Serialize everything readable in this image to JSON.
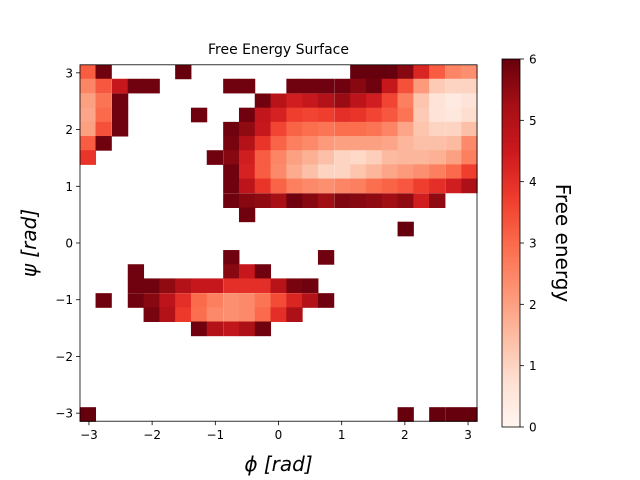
{
  "chart_data": {
    "type": "heatmap",
    "title": "Free Energy Surface",
    "xlabel": "ϕ  [rad]",
    "ylabel": "ψ  [rad]",
    "colorbar_label": "Free energy",
    "xlim": [
      -3.14159,
      3.14159
    ],
    "ylim": [
      -3.14159,
      3.14159
    ],
    "xticks": [
      -3,
      -2,
      -1,
      0,
      1,
      2,
      3
    ],
    "yticks": [
      -3,
      -2,
      -1,
      0,
      1,
      2,
      3
    ],
    "xtick_labels": [
      "−3",
      "−2",
      "−1",
      "0",
      "1",
      "2",
      "3"
    ],
    "ytick_labels": [
      "−3",
      "−2",
      "−1",
      "0",
      "1",
      "2",
      "3"
    ],
    "colorbar_range": [
      0,
      6
    ],
    "colorbar_ticks": [
      0,
      1,
      2,
      3,
      4,
      5,
      6
    ],
    "colorbar_tick_labels": [
      "0",
      "1",
      "2",
      "3",
      "4",
      "5",
      "6"
    ],
    "colormap": "Reds",
    "colormap_stops": [
      "#fff5f0",
      "#fee0d2",
      "#fcbba1",
      "#fc9272",
      "#fb6a4a",
      "#ef3b2c",
      "#cb181d",
      "#a50f15",
      "#67000d"
    ],
    "grid": false,
    "bins": 25,
    "cells_note": "cells: [phi_bin_center_rad, psi_bin_center_rad, free_energy]",
    "cells": [
      [
        -3.02,
        3.02,
        3.2
      ],
      [
        -2.77,
        3.02,
        5.9
      ],
      [
        -1.51,
        3.02,
        6.0
      ],
      [
        -3.02,
        2.77,
        2.5
      ],
      [
        -2.77,
        2.77,
        3.3
      ],
      [
        -2.51,
        2.77,
        4.6
      ],
      [
        -2.26,
        2.77,
        5.9
      ],
      [
        -2.01,
        2.77,
        5.9
      ],
      [
        -3.02,
        2.51,
        2.0
      ],
      [
        -2.77,
        2.51,
        2.8
      ],
      [
        -2.51,
        2.51,
        5.9
      ],
      [
        -3.02,
        2.26,
        1.9
      ],
      [
        -2.77,
        2.26,
        3.0
      ],
      [
        -2.51,
        2.26,
        5.9
      ],
      [
        -1.26,
        2.26,
        5.9
      ],
      [
        -3.02,
        2.01,
        2.0
      ],
      [
        -2.77,
        2.01,
        3.4
      ],
      [
        -2.51,
        2.01,
        5.9
      ],
      [
        -3.02,
        1.76,
        3.2
      ],
      [
        -2.77,
        1.76,
        5.9
      ],
      [
        -3.02,
        1.51,
        3.9
      ],
      [
        -0.75,
        2.77,
        5.9
      ],
      [
        -0.5,
        2.77,
        5.9
      ],
      [
        0.25,
        2.77,
        5.9
      ],
      [
        0.5,
        2.77,
        5.9
      ],
      [
        0.75,
        2.77,
        5.9
      ],
      [
        -0.25,
        2.51,
        5.9
      ],
      [
        0.0,
        2.51,
        4.9
      ],
      [
        0.25,
        2.51,
        4.4
      ],
      [
        0.5,
        2.51,
        4.6
      ],
      [
        0.75,
        2.51,
        5.0
      ],
      [
        -0.5,
        2.26,
        5.9
      ],
      [
        -0.25,
        2.26,
        4.7
      ],
      [
        0.0,
        2.26,
        4.3
      ],
      [
        0.25,
        2.26,
        3.7
      ],
      [
        0.5,
        2.26,
        3.6
      ],
      [
        0.75,
        2.26,
        3.7
      ],
      [
        -0.75,
        2.01,
        5.9
      ],
      [
        -0.5,
        2.01,
        5.5
      ],
      [
        -0.25,
        2.01,
        4.6
      ],
      [
        0.0,
        2.01,
        3.6
      ],
      [
        0.25,
        2.01,
        3.1
      ],
      [
        0.5,
        2.01,
        2.9
      ],
      [
        0.75,
        2.01,
        2.8
      ],
      [
        -0.75,
        1.76,
        5.8
      ],
      [
        -0.5,
        1.76,
        5.0
      ],
      [
        -0.25,
        1.76,
        3.9
      ],
      [
        0.0,
        1.76,
        3.1
      ],
      [
        0.25,
        1.76,
        2.6
      ],
      [
        0.5,
        1.76,
        2.4
      ],
      [
        0.75,
        1.76,
        2.1
      ],
      [
        -1.01,
        1.51,
        5.9
      ],
      [
        -0.75,
        1.51,
        5.6
      ],
      [
        -0.5,
        1.51,
        4.4
      ],
      [
        -0.25,
        1.51,
        3.2
      ],
      [
        0.0,
        1.51,
        2.5
      ],
      [
        0.25,
        1.51,
        2.0
      ],
      [
        0.5,
        1.51,
        1.7
      ],
      [
        0.75,
        1.51,
        1.4
      ],
      [
        -0.75,
        1.26,
        5.9
      ],
      [
        -0.5,
        1.26,
        4.3
      ],
      [
        -0.25,
        1.26,
        3.2
      ],
      [
        0.0,
        1.26,
        2.4
      ],
      [
        0.25,
        1.26,
        1.8
      ],
      [
        0.5,
        1.26,
        1.4
      ],
      [
        0.75,
        1.26,
        1.0
      ],
      [
        -0.75,
        1.01,
        5.9
      ],
      [
        -0.5,
        1.01,
        4.8
      ],
      [
        -0.25,
        1.01,
        3.9
      ],
      [
        0.0,
        1.01,
        3.1
      ],
      [
        0.25,
        1.01,
        2.6
      ],
      [
        0.5,
        1.01,
        2.4
      ],
      [
        0.75,
        1.01,
        2.3
      ],
      [
        -0.75,
        0.75,
        5.9
      ],
      [
        -0.5,
        0.75,
        5.6
      ],
      [
        -0.25,
        0.75,
        5.5
      ],
      [
        0.0,
        0.75,
        5.2
      ],
      [
        0.25,
        0.75,
        5.9
      ],
      [
        0.5,
        0.75,
        5.6
      ],
      [
        0.75,
        0.75,
        5.3
      ],
      [
        -0.5,
        0.5,
        5.9
      ],
      [
        1.26,
        3.02,
        6.0
      ],
      [
        1.51,
        3.02,
        6.0
      ],
      [
        1.76,
        3.02,
        6.0
      ],
      [
        2.01,
        3.02,
        5.6
      ],
      [
        2.26,
        3.02,
        4.2
      ],
      [
        2.51,
        3.02,
        3.2
      ],
      [
        2.77,
        3.02,
        2.5
      ],
      [
        3.02,
        3.02,
        2.3
      ],
      [
        1.01,
        2.77,
        5.9
      ],
      [
        1.26,
        2.77,
        5.6
      ],
      [
        1.51,
        2.77,
        5.9
      ],
      [
        1.76,
        2.77,
        4.6
      ],
      [
        2.01,
        2.77,
        3.4
      ],
      [
        2.26,
        2.77,
        2.1
      ],
      [
        2.51,
        2.77,
        1.2
      ],
      [
        2.77,
        2.77,
        1.0
      ],
      [
        3.02,
        2.77,
        1.0
      ],
      [
        1.01,
        2.51,
        5.4
      ],
      [
        1.26,
        2.51,
        4.8
      ],
      [
        1.51,
        2.51,
        4.4
      ],
      [
        1.76,
        2.51,
        3.6
      ],
      [
        2.01,
        2.51,
        2.6
      ],
      [
        2.26,
        2.51,
        1.3
      ],
      [
        2.51,
        2.51,
        0.6
      ],
      [
        2.77,
        2.51,
        0.4
      ],
      [
        3.02,
        2.51,
        0.6
      ],
      [
        1.01,
        2.26,
        4.0
      ],
      [
        1.26,
        2.26,
        3.9
      ],
      [
        1.51,
        2.26,
        3.6
      ],
      [
        1.76,
        2.26,
        3.3
      ],
      [
        2.01,
        2.26,
        2.8
      ],
      [
        2.26,
        2.26,
        1.2
      ],
      [
        2.51,
        2.26,
        0.6
      ],
      [
        2.77,
        2.26,
        0.5
      ],
      [
        3.02,
        2.26,
        0.8
      ],
      [
        1.01,
        2.01,
        2.9
      ],
      [
        1.26,
        2.01,
        2.9
      ],
      [
        1.51,
        2.01,
        2.8
      ],
      [
        1.76,
        2.01,
        2.5
      ],
      [
        2.01,
        2.01,
        1.9
      ],
      [
        2.26,
        2.01,
        1.3
      ],
      [
        2.51,
        2.01,
        1.0
      ],
      [
        2.77,
        2.01,
        1.0
      ],
      [
        3.02,
        2.01,
        1.4
      ],
      [
        1.01,
        1.76,
        2.0
      ],
      [
        1.26,
        1.76,
        2.0
      ],
      [
        1.51,
        1.76,
        2.0
      ],
      [
        1.76,
        1.76,
        1.9
      ],
      [
        2.01,
        1.76,
        1.6
      ],
      [
        2.26,
        1.76,
        1.4
      ],
      [
        2.51,
        1.76,
        1.4
      ],
      [
        2.77,
        1.76,
        1.5
      ],
      [
        3.02,
        1.76,
        2.4
      ],
      [
        1.01,
        1.51,
        1.0
      ],
      [
        1.26,
        1.51,
        0.9
      ],
      [
        1.51,
        1.51,
        1.1
      ],
      [
        1.76,
        1.51,
        1.5
      ],
      [
        2.01,
        1.51,
        1.6
      ],
      [
        2.26,
        1.51,
        1.6
      ],
      [
        2.51,
        1.51,
        1.7
      ],
      [
        2.77,
        1.51,
        2.0
      ],
      [
        3.02,
        1.51,
        2.6
      ],
      [
        1.01,
        1.26,
        1.0
      ],
      [
        1.26,
        1.26,
        1.3
      ],
      [
        1.51,
        1.26,
        1.6
      ],
      [
        1.76,
        1.26,
        1.9
      ],
      [
        2.01,
        1.26,
        2.1
      ],
      [
        2.26,
        1.26,
        2.3
      ],
      [
        2.51,
        1.26,
        2.6
      ],
      [
        2.77,
        1.26,
        3.0
      ],
      [
        3.02,
        1.26,
        3.7
      ],
      [
        1.01,
        1.01,
        2.5
      ],
      [
        1.26,
        1.01,
        2.6
      ],
      [
        1.51,
        1.01,
        2.9
      ],
      [
        1.76,
        1.01,
        3.1
      ],
      [
        2.01,
        1.01,
        3.3
      ],
      [
        2.26,
        1.01,
        3.7
      ],
      [
        2.51,
        1.01,
        4.0
      ],
      [
        2.77,
        1.01,
        4.4
      ],
      [
        3.02,
        1.01,
        5.1
      ],
      [
        1.01,
        0.75,
        5.7
      ],
      [
        1.26,
        0.75,
        5.6
      ],
      [
        1.51,
        0.75,
        5.5
      ],
      [
        1.76,
        0.75,
        5.3
      ],
      [
        2.01,
        0.75,
        5.5
      ],
      [
        2.26,
        0.75,
        4.4
      ],
      [
        2.51,
        0.75,
        5.5
      ],
      [
        2.01,
        0.25,
        6.0
      ],
      [
        0.75,
        -0.25,
        5.9
      ],
      [
        -0.75,
        -0.25,
        5.9
      ],
      [
        -2.26,
        -0.5,
        5.9
      ],
      [
        -0.75,
        -0.5,
        5.6
      ],
      [
        -0.5,
        -0.5,
        4.6
      ],
      [
        -0.25,
        -0.5,
        5.9
      ],
      [
        -2.26,
        -0.75,
        5.9
      ],
      [
        -2.01,
        -0.75,
        5.9
      ],
      [
        -1.76,
        -0.75,
        5.5
      ],
      [
        -1.51,
        -0.75,
        5.0
      ],
      [
        -1.26,
        -0.75,
        4.6
      ],
      [
        -1.01,
        -0.75,
        4.6
      ],
      [
        -0.75,
        -0.75,
        4.0
      ],
      [
        -0.5,
        -0.75,
        4.0
      ],
      [
        -0.25,
        -0.75,
        4.0
      ],
      [
        0.0,
        -0.75,
        4.9
      ],
      [
        0.25,
        -0.75,
        5.8
      ],
      [
        0.5,
        -0.75,
        5.9
      ],
      [
        -2.77,
        -1.01,
        5.9
      ],
      [
        -2.26,
        -1.01,
        5.9
      ],
      [
        -2.01,
        -1.01,
        5.6
      ],
      [
        -1.76,
        -1.01,
        4.8
      ],
      [
        -1.51,
        -1.01,
        4.0
      ],
      [
        -1.26,
        -1.01,
        3.0
      ],
      [
        -1.01,
        -1.01,
        2.6
      ],
      [
        -0.75,
        -1.01,
        2.3
      ],
      [
        -0.5,
        -1.01,
        2.4
      ],
      [
        -0.25,
        -1.01,
        2.8
      ],
      [
        0.0,
        -1.01,
        3.5
      ],
      [
        0.25,
        -1.01,
        4.2
      ],
      [
        0.5,
        -1.01,
        5.0
      ],
      [
        0.75,
        -1.01,
        5.9
      ],
      [
        -2.01,
        -1.26,
        5.8
      ],
      [
        -1.76,
        -1.26,
        5.0
      ],
      [
        -1.51,
        -1.26,
        3.8
      ],
      [
        -1.26,
        -1.26,
        2.9
      ],
      [
        -1.01,
        -1.26,
        2.4
      ],
      [
        -0.75,
        -1.26,
        2.3
      ],
      [
        -0.5,
        -1.26,
        2.4
      ],
      [
        -0.25,
        -1.26,
        3.0
      ],
      [
        0.0,
        -1.26,
        4.0
      ],
      [
        0.25,
        -1.26,
        5.1
      ],
      [
        -1.26,
        -1.51,
        5.9
      ],
      [
        -1.01,
        -1.51,
        5.0
      ],
      [
        -0.75,
        -1.51,
        4.7
      ],
      [
        -0.5,
        -1.51,
        5.1
      ],
      [
        -0.25,
        -1.51,
        5.9
      ],
      [
        -3.02,
        -3.02,
        6.0
      ],
      [
        2.01,
        -3.02,
        6.0
      ],
      [
        2.51,
        -3.02,
        6.0
      ],
      [
        2.77,
        -3.02,
        6.0
      ],
      [
        3.02,
        -3.02,
        6.0
      ]
    ]
  }
}
